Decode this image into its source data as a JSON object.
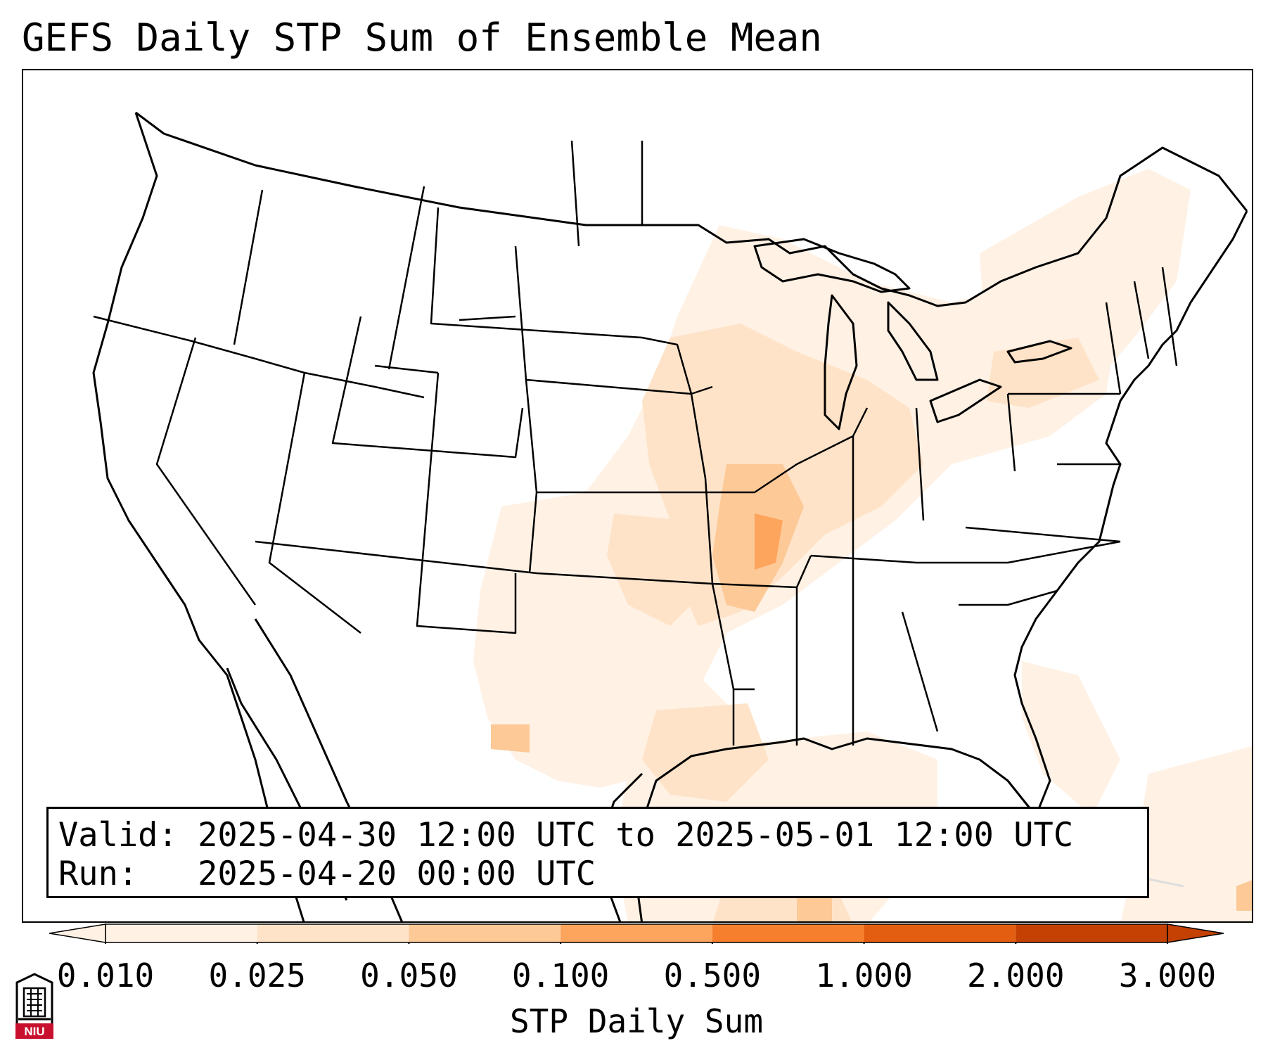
{
  "map": {
    "title": "GEFS Daily STP Sum of Ensemble Mean",
    "info": {
      "valid_line": "Valid: 2025-04-30 12:00 UTC to 2025-05-01 12:00 UTC",
      "run_line": "Run:   2025-04-20 00:00 UTC"
    },
    "colorbar": {
      "label": "STP Daily Sum",
      "ticks": [
        "0.010",
        "0.025",
        "0.050",
        "0.100",
        "0.500",
        "1.000",
        "2.000",
        "3.000"
      ],
      "colors": [
        "#fff1e4",
        "#fee3c8",
        "#fdc997",
        "#fda45d",
        "#f67f2e",
        "#e35e10",
        "#c44103"
      ],
      "extend": "both"
    },
    "field": {
      "description_colors": {
        "lightest": "#fff1e4",
        "light": "#fee3c8",
        "medium": "#fdc997",
        "strong": "#fda45d"
      }
    },
    "logo": {
      "text": "NIU",
      "icon": "university-seal-icon",
      "color": "#c8102e"
    }
  }
}
